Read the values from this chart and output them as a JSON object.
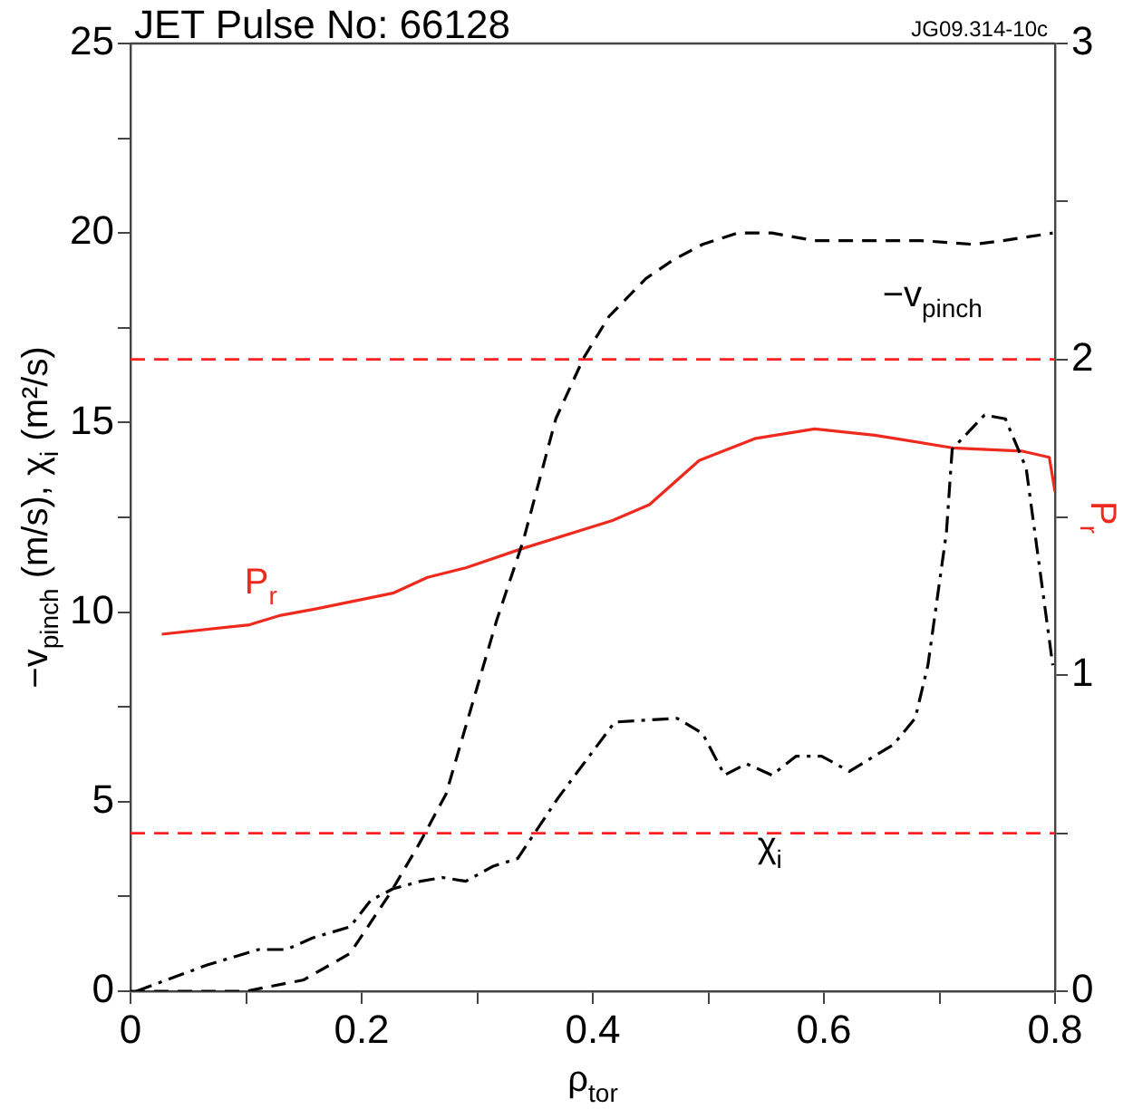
{
  "chart_data": {
    "type": "line",
    "title": "JET Pulse No: 66128",
    "annotations": [
      "JG09.314-10c"
    ],
    "xlabel": "ρ$_{tor}$",
    "ylabel": "−v$_{pinch}$ (m/s), χ$_{i}$ (m²/s)",
    "y2label": "P$_{r}$",
    "xlim": [
      0,
      0.8
    ],
    "xticks": [
      0,
      {
        "value": 0.1,
        "label": null
      },
      {
        "value": 0.2,
        "label": "0.2"
      },
      {
        "value": 0.3,
        "label": null
      },
      {
        "value": 0.4,
        "label": "0.4"
      },
      {
        "value": 0.5,
        "label": null
      },
      {
        "value": 0.6,
        "label": "0.6"
      },
      {
        "value": 0.7,
        "label": null
      },
      {
        "value": 0.8,
        "label": "0.8"
      }
    ],
    "ylim": [
      0,
      25
    ],
    "yticks": [
      0,
      {
        "value": 2.5,
        "label": null
      },
      5,
      {
        "value": 7.5,
        "label": null
      },
      10,
      {
        "value": 12.5,
        "label": null
      },
      15,
      {
        "value": 17.5,
        "label": null
      },
      20,
      {
        "value": 22.5,
        "label": null
      },
      25
    ],
    "y2lim": [
      0,
      3
    ],
    "y2ticks": [
      0,
      {
        "value": 0.5,
        "label": null
      },
      1,
      {
        "value": 1.5,
        "label": null
      },
      2,
      {
        "value": 2.5,
        "label": null
      },
      3
    ],
    "grid": false,
    "legend": false,
    "marker": "none",
    "ref_lines": [
      {
        "axis": "y2",
        "value": 2,
        "color": "#ff2020",
        "line_style": "dashed"
      },
      {
        "axis": "y2",
        "value": 0.5,
        "color": "#ff2020",
        "line_style": "dashed"
      }
    ],
    "series": [
      {
        "name": "−v$_{pinch}$",
        "color": "#000000",
        "line_style": "dashed",
        "x": [
          0,
          0.1,
          0.15,
          0.19,
          0.225,
          0.25,
          0.273,
          0.317,
          0.34,
          0.368,
          0.392,
          0.414,
          0.446,
          0.47,
          0.495,
          0.525,
          0.555,
          0.592,
          0.635,
          0.684,
          0.73,
          0.755,
          0.798
        ],
        "values": [
          0,
          0,
          0.3,
          1.0,
          2.6,
          3.9,
          5.2,
          9.8,
          11.9,
          15.1,
          16.7,
          17.8,
          18.8,
          19.3,
          19.7,
          20.0,
          20.0,
          19.8,
          19.8,
          19.8,
          19.7,
          19.8,
          20.0
        ]
      },
      {
        "name": "χ$_{i}$",
        "color": "#000000",
        "line_style": "dashdot",
        "x": [
          0.005,
          0.067,
          0.111,
          0.135,
          0.157,
          0.19,
          0.208,
          0.227,
          0.251,
          0.27,
          0.29,
          0.314,
          0.335,
          0.37,
          0.419,
          0.473,
          0.495,
          0.514,
          0.533,
          0.555,
          0.576,
          0.598,
          0.622,
          0.66,
          0.679,
          0.69,
          0.706,
          0.711,
          0.739,
          0.757,
          0.775,
          0.798
        ],
        "values": [
          0,
          0.7,
          1.1,
          1.1,
          1.4,
          1.7,
          2.4,
          2.7,
          2.9,
          3.0,
          2.9,
          3.3,
          3.5,
          5.1,
          7.1,
          7.2,
          6.8,
          5.7,
          6.0,
          5.7,
          6.2,
          6.2,
          5.8,
          6.5,
          7.2,
          8.6,
          12.1,
          14.3,
          15.2,
          15.1,
          13.8,
          8.6
        ]
      },
      {
        "name": "P$_{r}$",
        "color": "#ee2a1e",
        "line_style": "solid",
        "axis": "y2",
        "x": [
          0.027,
          0.103,
          0.13,
          0.16,
          0.227,
          0.257,
          0.29,
          0.338,
          0.417,
          0.449,
          0.492,
          0.541,
          0.592,
          0.644,
          0.711,
          0.771,
          0.795,
          0.8
        ],
        "values": [
          1.13,
          1.16,
          1.19,
          1.21,
          1.26,
          1.31,
          1.34,
          1.4,
          1.49,
          1.54,
          1.68,
          1.75,
          1.78,
          1.76,
          1.72,
          1.71,
          1.69,
          1.58
        ]
      }
    ]
  }
}
